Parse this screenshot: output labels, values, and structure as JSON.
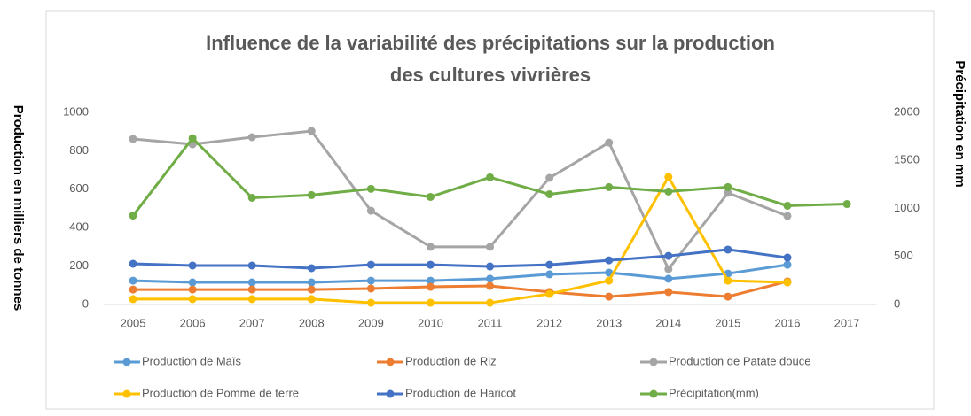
{
  "chart_data": {
    "type": "line",
    "title": [
      "Influence de la variabilité des précipitations sur la production",
      "des cultures  vivrières"
    ],
    "y_label": "Production en milliers de tonnes",
    "y2_label": "Précipitation en mm",
    "categories": [
      "2005",
      "2006",
      "2007",
      "2008",
      "2009",
      "2010",
      "2011",
      "2012",
      "2013",
      "2014",
      "2015",
      "2016",
      "2017"
    ],
    "ylim": [
      0,
      1000
    ],
    "yticks": [
      0,
      200,
      400,
      600,
      800,
      1000
    ],
    "y2lim": [
      0,
      2000
    ],
    "y2ticks": [
      0,
      500,
      1000,
      1500,
      2000
    ],
    "grid": false,
    "legend": "bottom",
    "series": [
      {
        "name": "Production de Maïs",
        "color": "#5b9bd5",
        "values": [
          124,
          115,
          115,
          115,
          124,
          124,
          134,
          157,
          166,
          134,
          161,
          207,
          null
        ]
      },
      {
        "name": "Production de Riz",
        "color": "#ed7d31",
        "values": [
          78,
          78,
          78,
          78,
          83,
          92,
          97,
          65,
          41,
          65,
          41,
          120,
          null
        ]
      },
      {
        "name": "Production de Patate douce",
        "color": "#a5a5a5",
        "values": [
          862,
          834,
          871,
          903,
          488,
          300,
          300,
          659,
          843,
          184,
          581,
          461,
          null
        ]
      },
      {
        "name": "Production de Pomme de terre",
        "color": "#ffc000",
        "values": [
          28,
          28,
          28,
          28,
          9,
          9,
          9,
          55,
          124,
          664,
          124,
          115,
          null
        ]
      },
      {
        "name": "Production de Haricot",
        "color": "#4472c4",
        "values": [
          212,
          203,
          203,
          189,
          207,
          207,
          198,
          207,
          230,
          253,
          286,
          244,
          null
        ]
      },
      {
        "name": "Précipitation(mm)",
        "color": "#70ad47",
        "axis": "y2",
        "values": [
          926,
          1731,
          1111,
          1139,
          1204,
          1120,
          1324,
          1148,
          1222,
          1176,
          1222,
          1028,
          1046
        ]
      }
    ]
  }
}
